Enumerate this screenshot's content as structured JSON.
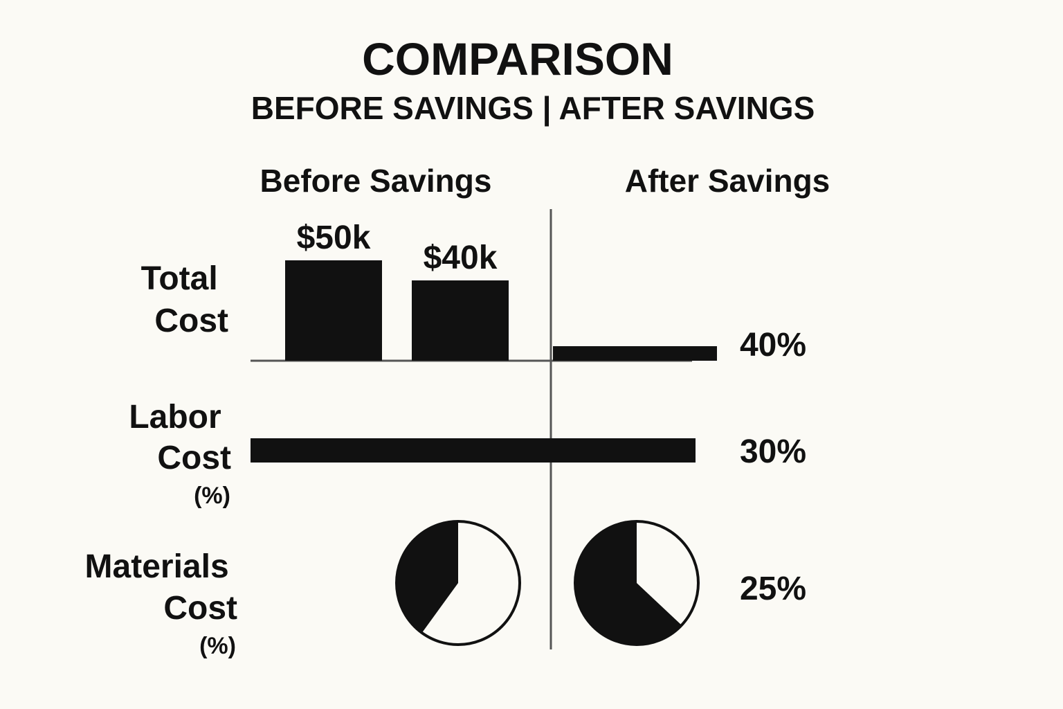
{
  "colors": {
    "background": "#fbfaf5",
    "ink": "#111111",
    "divider": "#555555"
  },
  "chart_data": {
    "type": "infographic",
    "title": "COMPARISON",
    "subtitle": "BEFORE SAVINGS | AFTER SAVINGS",
    "column_headers": {
      "before": "Before Savings",
      "after": "After Savings"
    },
    "rows": [
      {
        "label_lines": [
          "Total",
          "Cost"
        ],
        "type": "bar",
        "before_values": [
          50,
          40
        ],
        "before_value_labels": [
          "$50k",
          "$40k"
        ],
        "unit": "$k",
        "after_bar_length_fraction": 0.6,
        "percent_label": "40%"
      },
      {
        "label_lines": [
          "Labor",
          "Cost"
        ],
        "label_unit": "(%)",
        "type": "bar",
        "bar_length_fraction": 1.0,
        "percent_label": "30%"
      },
      {
        "label_lines": [
          "Materials",
          "Cost"
        ],
        "label_unit": "(%)",
        "type": "pie",
        "before_filled_fraction": 0.4,
        "after_filled_fraction": 0.63,
        "percent_label": "25%"
      }
    ]
  }
}
